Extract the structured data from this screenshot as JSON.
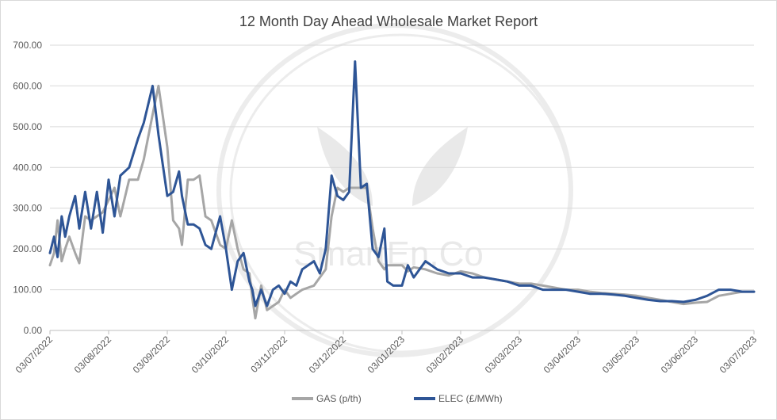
{
  "chart_data": {
    "type": "line",
    "title": "12 Month Day Ahead Wholesale Market Report",
    "xlabel": "",
    "ylabel": "",
    "ylim": [
      0,
      700
    ],
    "grid": true,
    "legend_position": "bottom",
    "x_tick_labels": [
      "03/07/2022",
      "03/08/2022",
      "03/09/2022",
      "03/10/2022",
      "03/11/2022",
      "03/12/2022",
      "03/01/2023",
      "03/02/2023",
      "03/03/2023",
      "03/04/2023",
      "03/05/2023",
      "03/06/2023",
      "03/07/2023"
    ],
    "y_tick_labels": [
      "0.00",
      "100.00",
      "200.00",
      "300.00",
      "400.00",
      "500.00",
      "600.00",
      "700.00"
    ],
    "watermark": "SmartEn.Co",
    "series": [
      {
        "name": "GAS (p/th)",
        "color": "#a6a6a6",
        "x_month": [
          0,
          0.07,
          0.13,
          0.2,
          0.26,
          0.33,
          0.43,
          0.5,
          0.6,
          0.7,
          0.8,
          0.9,
          1.0,
          1.1,
          1.2,
          1.35,
          1.5,
          1.6,
          1.75,
          1.85,
          2.0,
          2.1,
          2.2,
          2.25,
          2.35,
          2.45,
          2.55,
          2.65,
          2.75,
          2.9,
          3.0,
          3.1,
          3.2,
          3.3,
          3.4,
          3.45,
          3.5,
          3.6,
          3.7,
          3.8,
          3.9,
          4.0,
          4.1,
          4.2,
          4.3,
          4.5,
          4.6,
          4.7,
          4.8,
          4.9,
          5.0,
          5.1,
          5.2,
          5.3,
          5.4,
          5.5,
          5.6,
          5.7,
          5.75,
          5.85,
          6.0,
          6.1,
          6.2,
          6.4,
          6.6,
          6.8,
          7.0,
          7.2,
          7.4,
          7.6,
          7.8,
          8.0,
          8.2,
          8.4,
          8.6,
          8.8,
          9.0,
          9.2,
          9.4,
          9.6,
          9.8,
          10.0,
          10.2,
          10.4,
          10.6,
          10.8,
          11.0,
          11.2,
          11.4,
          11.6,
          11.8,
          12.0
        ],
        "values": [
          160,
          190,
          270,
          170,
          200,
          230,
          190,
          165,
          280,
          270,
          280,
          290,
          320,
          350,
          280,
          370,
          370,
          420,
          530,
          600,
          450,
          270,
          250,
          210,
          370,
          370,
          380,
          280,
          270,
          210,
          200,
          270,
          200,
          150,
          140,
          80,
          30,
          110,
          50,
          60,
          70,
          100,
          80,
          90,
          100,
          110,
          130,
          150,
          280,
          350,
          340,
          350,
          350,
          350,
          350,
          250,
          170,
          150,
          160,
          160,
          160,
          145,
          155,
          150,
          140,
          135,
          145,
          140,
          130,
          125,
          120,
          115,
          115,
          110,
          105,
          100,
          100,
          95,
          92,
          90,
          88,
          85,
          80,
          75,
          70,
          65,
          68,
          70,
          85,
          90,
          95,
          95
        ]
      },
      {
        "name": "ELEC (£/MWh)",
        "color": "#2e5596",
        "x_month": [
          0,
          0.07,
          0.13,
          0.2,
          0.26,
          0.33,
          0.43,
          0.5,
          0.6,
          0.7,
          0.8,
          0.9,
          1.0,
          1.1,
          1.2,
          1.35,
          1.5,
          1.6,
          1.75,
          1.85,
          2.0,
          2.1,
          2.2,
          2.25,
          2.35,
          2.45,
          2.55,
          2.65,
          2.75,
          2.9,
          3.0,
          3.1,
          3.2,
          3.3,
          3.4,
          3.45,
          3.5,
          3.6,
          3.7,
          3.8,
          3.9,
          4.0,
          4.1,
          4.2,
          4.3,
          4.5,
          4.6,
          4.7,
          4.8,
          4.9,
          5.0,
          5.1,
          5.2,
          5.3,
          5.4,
          5.5,
          5.6,
          5.7,
          5.75,
          5.85,
          6.0,
          6.1,
          6.2,
          6.4,
          6.6,
          6.8,
          7.0,
          7.2,
          7.4,
          7.6,
          7.8,
          8.0,
          8.2,
          8.4,
          8.6,
          8.8,
          9.0,
          9.2,
          9.4,
          9.6,
          9.8,
          10.0,
          10.2,
          10.4,
          10.6,
          10.8,
          11.0,
          11.2,
          11.4,
          11.6,
          11.8,
          12.0
        ],
        "values": [
          190,
          230,
          180,
          280,
          230,
          280,
          330,
          250,
          340,
          250,
          340,
          240,
          370,
          280,
          380,
          400,
          470,
          510,
          600,
          480,
          330,
          340,
          390,
          330,
          260,
          260,
          250,
          210,
          200,
          280,
          200,
          100,
          170,
          190,
          120,
          100,
          60,
          100,
          60,
          100,
          110,
          90,
          120,
          110,
          150,
          170,
          140,
          200,
          380,
          330,
          320,
          340,
          660,
          350,
          360,
          200,
          180,
          250,
          120,
          110,
          110,
          160,
          130,
          170,
          150,
          140,
          140,
          130,
          130,
          125,
          120,
          110,
          110,
          100,
          100,
          100,
          95,
          90,
          90,
          88,
          85,
          80,
          75,
          72,
          72,
          70,
          75,
          85,
          100,
          100,
          95,
          95
        ]
      }
    ]
  }
}
